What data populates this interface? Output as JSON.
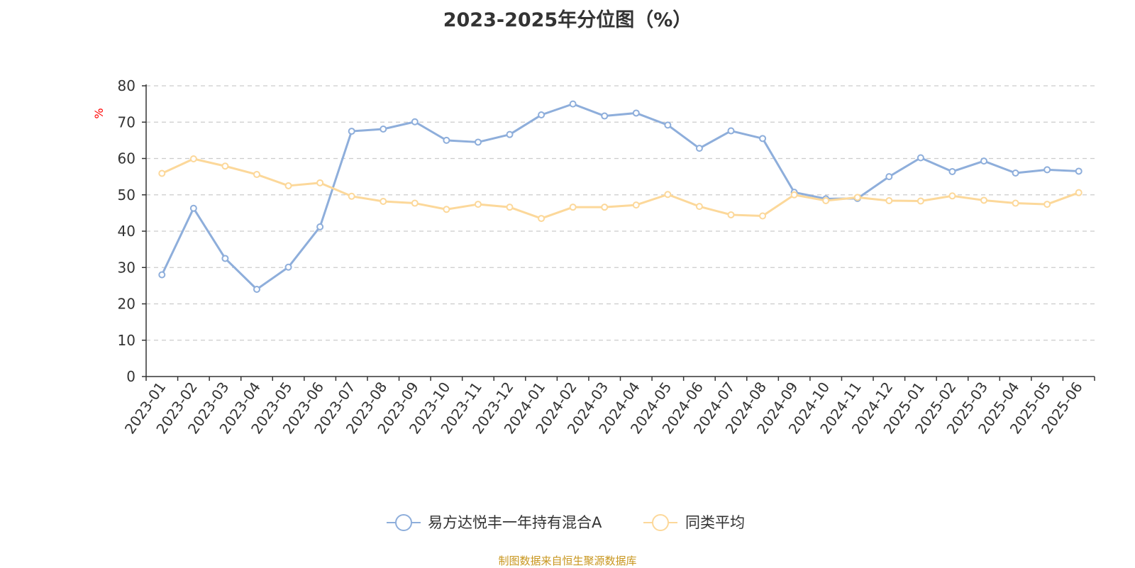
{
  "chart_data": {
    "type": "line",
    "title": "2023-2025年分位图（%）",
    "ylabel": "%",
    "xlabel": "",
    "ylim": [
      0,
      80
    ],
    "yticks": [
      0,
      10,
      20,
      30,
      40,
      50,
      60,
      70,
      80
    ],
    "grid": true,
    "legend_position": "bottom-center",
    "categories": [
      "2023-01",
      "2023-02",
      "2023-03",
      "2023-04",
      "2023-05",
      "2023-06",
      "2023-07",
      "2023-08",
      "2023-09",
      "2023-10",
      "2023-11",
      "2023-12",
      "2024-01",
      "2024-02",
      "2024-03",
      "2024-04",
      "2024-05",
      "2024-06",
      "2024-07",
      "2024-08",
      "2024-09",
      "2024-10",
      "2024-11",
      "2024-12",
      "2025-01",
      "2025-02",
      "2025-03",
      "2025-04",
      "2025-05",
      "2025-06"
    ],
    "series": [
      {
        "name": "易方达悦丰一年持有混合A",
        "color": "#8eaedb",
        "values": [
          28.0,
          46.3,
          32.5,
          24.0,
          30.1,
          41.2,
          67.5,
          68.1,
          70.1,
          65.0,
          64.5,
          66.6,
          72.0,
          75.0,
          71.7,
          72.5,
          69.2,
          62.8,
          67.6,
          65.5,
          50.7,
          48.9,
          49.0,
          55.0,
          60.2,
          56.4,
          59.3,
          56.0,
          56.9,
          56.5
        ]
      },
      {
        "name": "同类平均",
        "color": "#fcd89a",
        "values": [
          55.9,
          59.9,
          57.9,
          55.6,
          52.5,
          53.3,
          49.6,
          48.2,
          47.7,
          46.0,
          47.4,
          46.6,
          43.5,
          46.6,
          46.6,
          47.2,
          50.1,
          46.8,
          44.5,
          44.2,
          50.0,
          48.4,
          49.3,
          48.4,
          48.3,
          49.7,
          48.5,
          47.7,
          47.4,
          50.6
        ]
      }
    ]
  },
  "source": "制图数据来自恒生聚源数据库"
}
